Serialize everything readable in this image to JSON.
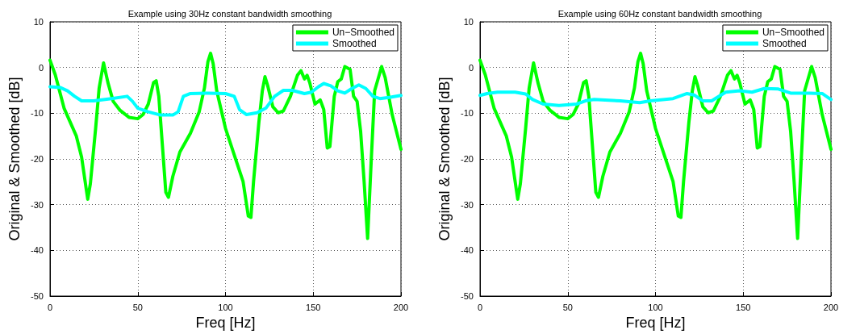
{
  "chart_data": [
    {
      "type": "line",
      "title": "Example using 30Hz constant bandwidth smoothing",
      "xlabel": "Freq [Hz]",
      "ylabel": "Original & Smoothed [dB]",
      "xlim": [
        0,
        200
      ],
      "xticks": [
        0,
        50,
        100,
        150,
        200
      ],
      "ylim": [
        -50,
        10
      ],
      "yticks": [
        -50,
        -40,
        -30,
        -20,
        -10,
        0,
        10
      ],
      "grid": true,
      "legend": "top right",
      "marker": "none",
      "line_style": "solid",
      "x": [
        0,
        3,
        8,
        15,
        18,
        20,
        21.5,
        23,
        26,
        28,
        30.5,
        33,
        36,
        40,
        45,
        50,
        53,
        56,
        59,
        60.5,
        62,
        64,
        66,
        67.5,
        70,
        74,
        80,
        85,
        88,
        90,
        91.5,
        93,
        95,
        100,
        106,
        110,
        113,
        114.5,
        116,
        119,
        121,
        122.5,
        124,
        127,
        130,
        133,
        137,
        141,
        143,
        145,
        146.5,
        148,
        151,
        154,
        156,
        158,
        159.5,
        162,
        164,
        166,
        168,
        171,
        173,
        175,
        177,
        179,
        181,
        183,
        185,
        189,
        191,
        195,
        200
      ],
      "series": [
        {
          "name": "Un−Smoothed",
          "color": "#00ff00",
          "values": [
            1.6,
            -1.6,
            -8.9,
            -15,
            -19.6,
            -24.9,
            -28.8,
            -25.4,
            -13.3,
            -4.5,
            1.0,
            -3.3,
            -7.4,
            -9.4,
            -10.9,
            -11.2,
            -10.3,
            -8,
            -3.3,
            -2.9,
            -6.3,
            -16.8,
            -27.3,
            -28.4,
            -23.8,
            -18.5,
            -14.4,
            -9.7,
            -4.5,
            1.3,
            3.1,
            0.8,
            -5.1,
            -13.3,
            -20.3,
            -24.9,
            -32.5,
            -32.8,
            -24.9,
            -12.1,
            -5.1,
            -2.0,
            -3.9,
            -8.6,
            -9.9,
            -9.5,
            -6.3,
            -1.7,
            -0.7,
            -2.5,
            -1.7,
            -3.3,
            -8.0,
            -7.1,
            -9.2,
            -17.6,
            -17.3,
            -6.3,
            -3.1,
            -2.5,
            0.2,
            -0.4,
            -6.3,
            -7.4,
            -13.9,
            -24.9,
            -37.4,
            -20.8,
            -5.1,
            0.2,
            -2.2,
            -10.3,
            -17.9
          ]
        },
        {
          "name": "Smoothed",
          "color": "#00ffff",
          "x": [
            0,
            6,
            10,
            14,
            18,
            25,
            35,
            44,
            47,
            50,
            56,
            63,
            70,
            73,
            76,
            80,
            90,
            100,
            105,
            108,
            112,
            118,
            123,
            128,
            133,
            138,
            145,
            149,
            153,
            156,
            160,
            164,
            168,
            172,
            176,
            180,
            184,
            188,
            194,
            200
          ],
          "values": [
            -4.2,
            -4.4,
            -5.1,
            -6.3,
            -7.3,
            -7.3,
            -6.8,
            -6.3,
            -7.4,
            -8.9,
            -9.7,
            -10.4,
            -10.4,
            -9.7,
            -6.3,
            -5.7,
            -5.6,
            -5.7,
            -6.3,
            -9.2,
            -10.3,
            -9.9,
            -8.9,
            -6.3,
            -5.0,
            -5.0,
            -5.7,
            -5.4,
            -4.2,
            -3.5,
            -4.0,
            -5.1,
            -5.6,
            -4.6,
            -3.8,
            -4.6,
            -6.3,
            -6.8,
            -6.5,
            -6.1
          ]
        }
      ]
    },
    {
      "type": "line",
      "title": "Example using 60Hz constant bandwidth smoothing",
      "xlabel": "Freq [Hz]",
      "ylabel": "Original & Smoothed [dB]",
      "xlim": [
        0,
        200
      ],
      "xticks": [
        0,
        50,
        100,
        150,
        200
      ],
      "ylim": [
        -50,
        10
      ],
      "yticks": [
        -50,
        -40,
        -30,
        -20,
        -10,
        0,
        10
      ],
      "grid": true,
      "legend": "top right",
      "marker": "none",
      "line_style": "solid",
      "x": [
        0,
        3,
        8,
        15,
        18,
        20,
        21.5,
        23,
        26,
        28,
        30.5,
        33,
        36,
        40,
        45,
        50,
        53,
        56,
        59,
        60.5,
        62,
        64,
        66,
        67.5,
        70,
        74,
        80,
        85,
        88,
        90,
        91.5,
        93,
        95,
        100,
        106,
        110,
        113,
        114.5,
        116,
        119,
        121,
        122.5,
        124,
        127,
        130,
        133,
        137,
        141,
        143,
        145,
        146.5,
        148,
        151,
        154,
        156,
        158,
        159.5,
        162,
        164,
        166,
        168,
        171,
        173,
        175,
        177,
        179,
        181,
        183,
        185,
        189,
        191,
        195,
        200
      ],
      "series": [
        {
          "name": "Un−Smoothed",
          "color": "#00ff00",
          "values": [
            1.6,
            -1.6,
            -8.9,
            -15,
            -19.6,
            -24.9,
            -28.8,
            -25.4,
            -13.3,
            -4.5,
            1.0,
            -3.3,
            -7.4,
            -9.4,
            -10.9,
            -11.2,
            -10.3,
            -8,
            -3.3,
            -2.9,
            -6.3,
            -16.8,
            -27.3,
            -28.4,
            -23.8,
            -18.5,
            -14.4,
            -9.7,
            -4.5,
            1.3,
            3.1,
            0.8,
            -5.1,
            -13.3,
            -20.3,
            -24.9,
            -32.5,
            -32.8,
            -24.9,
            -12.1,
            -5.1,
            -2.0,
            -3.9,
            -8.6,
            -9.9,
            -9.5,
            -6.3,
            -1.7,
            -0.7,
            -2.5,
            -1.7,
            -3.3,
            -8.0,
            -7.1,
            -9.2,
            -17.6,
            -17.3,
            -6.3,
            -3.1,
            -2.5,
            0.2,
            -0.4,
            -6.3,
            -7.4,
            -13.9,
            -24.9,
            -37.4,
            -20.8,
            -5.1,
            0.2,
            -2.2,
            -10.3,
            -17.9
          ]
        },
        {
          "name": "Smoothed",
          "color": "#00ffff",
          "x": [
            0,
            4,
            10,
            20,
            26,
            30,
            36,
            45,
            55,
            60,
            65,
            80,
            91,
            97,
            110,
            118,
            122,
            127,
            132,
            140,
            148,
            155,
            162,
            170,
            177,
            188,
            195,
            200
          ],
          "values": [
            -6.1,
            -5.7,
            -5.4,
            -5.4,
            -5.8,
            -7.0,
            -8.0,
            -8.3,
            -8.0,
            -7.3,
            -7.0,
            -7.3,
            -7.7,
            -7.3,
            -6.8,
            -5.7,
            -6.0,
            -7.3,
            -7.3,
            -5.4,
            -5.1,
            -5.4,
            -4.6,
            -4.7,
            -5.6,
            -5.6,
            -5.7,
            -7.0
          ]
        }
      ]
    }
  ]
}
